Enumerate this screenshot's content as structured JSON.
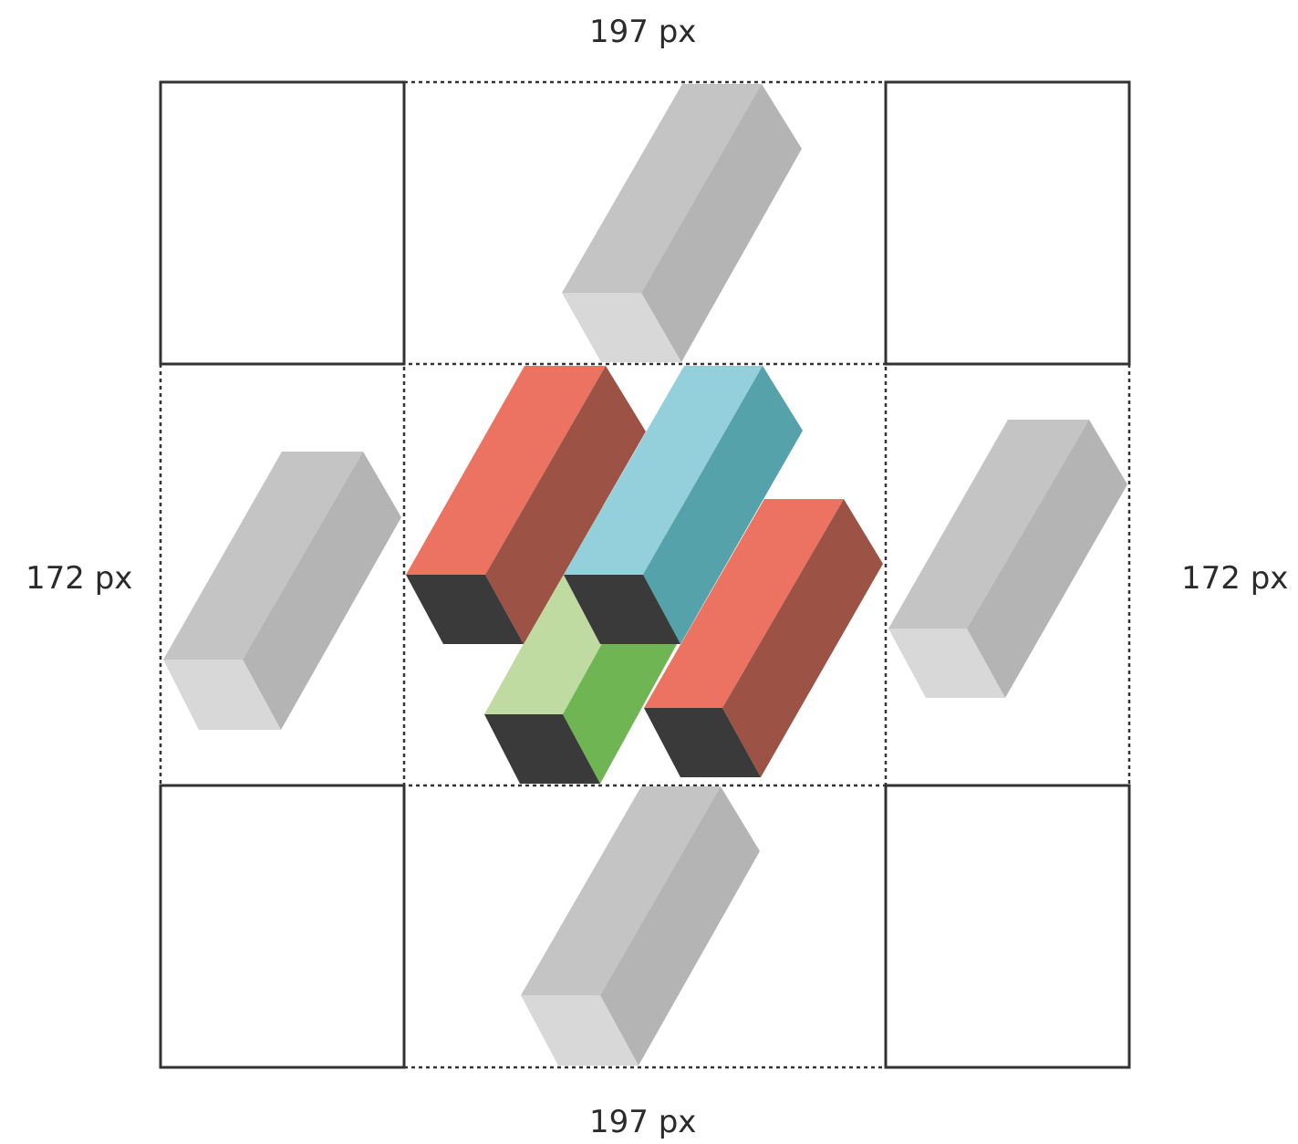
{
  "labels": {
    "top_width": "197 px",
    "bottom_width": "197 px",
    "left_height": "172 px",
    "right_height": "172 px"
  },
  "colors": {
    "background": "#ffffff",
    "grid_line": "#333333",
    "red_top": "#ec7361",
    "red_side": "#9c5244",
    "blue_top": "#93d0dc",
    "blue_side": "#55a2ab",
    "green_top": "#c0dba2",
    "green_side": "#6fb554",
    "end_face": "#3a3a3a",
    "gray_top": "#c4c4c4",
    "gray_side": "#b4b4b4",
    "gray_end": "#d8d8d8"
  }
}
